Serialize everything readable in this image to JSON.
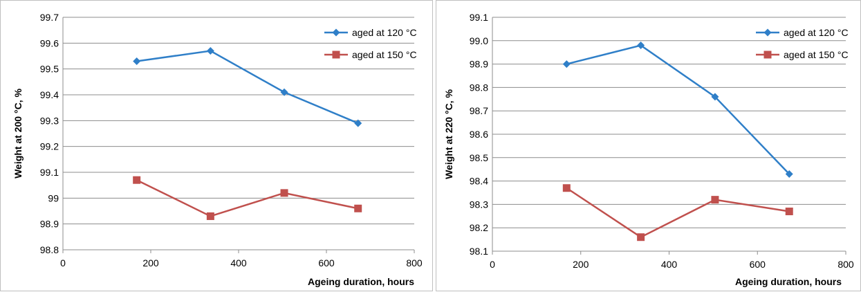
{
  "chart_data": [
    {
      "type": "line",
      "xlabel": "Ageing duration, hours",
      "ylabel": "Weight at 200 °C, %",
      "xlim": [
        0,
        800
      ],
      "ylim": [
        98.8,
        99.7
      ],
      "x_ticks": [
        0,
        200,
        400,
        600,
        800
      ],
      "x_tick_labels": [
        "0",
        "200",
        "400",
        "600",
        "800"
      ],
      "y_ticks": [
        98.8,
        98.9,
        99.0,
        99.1,
        99.2,
        99.3,
        99.4,
        99.5,
        99.6,
        99.7
      ],
      "y_tick_labels": [
        "98.8",
        "98.9",
        "99",
        "99.1",
        "99.2",
        "99.3",
        "99.4",
        "99.5",
        "99.6",
        "99.7"
      ],
      "grid": "horizontal",
      "legend_position": "top-right",
      "series": [
        {
          "name": "aged at 120 °C",
          "color": "#2f7fc8",
          "marker": "diamond",
          "x": [
            168,
            336,
            504,
            672
          ],
          "y": [
            99.53,
            99.57,
            99.41,
            99.29
          ]
        },
        {
          "name": "aged at 150 °C",
          "color": "#c0504d",
          "marker": "square",
          "x": [
            168,
            336,
            504,
            672
          ],
          "y": [
            99.07,
            98.93,
            99.02,
            98.96
          ]
        }
      ]
    },
    {
      "type": "line",
      "xlabel": "Ageing duration, hours",
      "ylabel": "Weight at 220 °C, %",
      "xlim": [
        0,
        800
      ],
      "ylim": [
        98.1,
        99.1
      ],
      "x_ticks": [
        0,
        200,
        400,
        600,
        800
      ],
      "x_tick_labels": [
        "0",
        "200",
        "400",
        "600",
        "800"
      ],
      "y_ticks": [
        98.1,
        98.2,
        98.3,
        98.4,
        98.5,
        98.6,
        98.7,
        98.8,
        98.9,
        99.0,
        99.1
      ],
      "y_tick_labels": [
        "98.1",
        "98.2",
        "98.3",
        "98.4",
        "98.5",
        "98.6",
        "98.7",
        "98.8",
        "98.9",
        "99.0",
        "99.1"
      ],
      "grid": "horizontal",
      "legend_position": "top-right",
      "series": [
        {
          "name": "aged at 120 °C",
          "color": "#2f7fc8",
          "marker": "diamond",
          "x": [
            168,
            336,
            504,
            672
          ],
          "y": [
            98.9,
            98.98,
            98.76,
            98.43
          ]
        },
        {
          "name": "aged at 150 °C",
          "color": "#c0504d",
          "marker": "square",
          "x": [
            168,
            336,
            504,
            672
          ],
          "y": [
            98.37,
            98.16,
            98.32,
            98.27
          ]
        }
      ]
    }
  ]
}
